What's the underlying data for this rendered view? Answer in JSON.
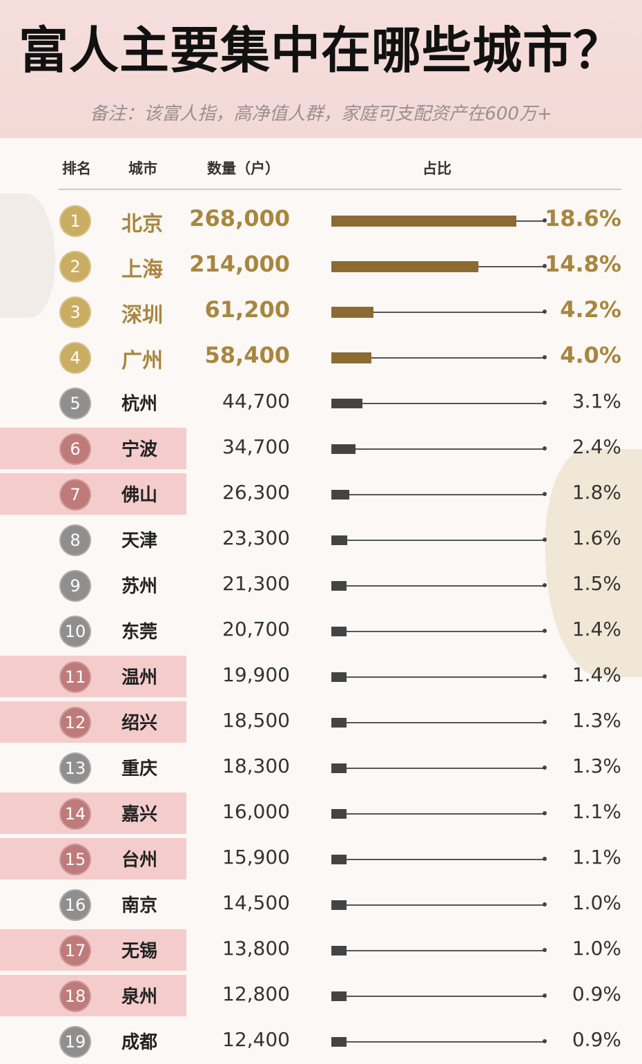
{
  "header": {
    "title": "富人主要集中在哪些城市？",
    "note": "备注：该富人指，高净值人群，家庭可支配资产在600万+"
  },
  "columns": {
    "rank": "排名",
    "city": "城市",
    "count": "数量（户）",
    "share": "占比"
  },
  "colors": {
    "gold_badge": "#c9ad62",
    "gold_text": "#a8863e",
    "gold_bar": "#8c6b33",
    "gray_badge": "#8f8f8f",
    "red_badge": "#bf7a7a",
    "dark_bar": "#444444",
    "highlight": "#f3c9c9"
  },
  "chart_data": {
    "type": "bar",
    "title": "富人主要集中在哪些城市？",
    "ylabel": "占比",
    "rows": [
      {
        "rank": "1",
        "city": "北京",
        "count": "268,000",
        "pct_label": "18.6%",
        "pct": 18.6,
        "style": "gold",
        "highlight": false
      },
      {
        "rank": "2",
        "city": "上海",
        "count": "214,000",
        "pct_label": "14.8%",
        "pct": 14.8,
        "style": "gold",
        "highlight": false
      },
      {
        "rank": "3",
        "city": "深圳",
        "count": "61,200",
        "pct_label": "4.2%",
        "pct": 4.2,
        "style": "gold",
        "highlight": false
      },
      {
        "rank": "4",
        "city": "广州",
        "count": "58,400",
        "pct_label": "4.0%",
        "pct": 4.0,
        "style": "gold",
        "highlight": false
      },
      {
        "rank": "5",
        "city": "杭州",
        "count": "44,700",
        "pct_label": "3.1%",
        "pct": 3.1,
        "style": "gray",
        "highlight": false
      },
      {
        "rank": "6",
        "city": "宁波",
        "count": "34,700",
        "pct_label": "2.4%",
        "pct": 2.4,
        "style": "red",
        "highlight": true
      },
      {
        "rank": "7",
        "city": "佛山",
        "count": "26,300",
        "pct_label": "1.8%",
        "pct": 1.8,
        "style": "red",
        "highlight": true
      },
      {
        "rank": "8",
        "city": "天津",
        "count": "23,300",
        "pct_label": "1.6%",
        "pct": 1.6,
        "style": "gray",
        "highlight": false
      },
      {
        "rank": "9",
        "city": "苏州",
        "count": "21,300",
        "pct_label": "1.5%",
        "pct": 1.5,
        "style": "gray",
        "highlight": false
      },
      {
        "rank": "10",
        "city": "东莞",
        "count": "20,700",
        "pct_label": "1.4%",
        "pct": 1.4,
        "style": "gray",
        "highlight": false
      },
      {
        "rank": "11",
        "city": "温州",
        "count": "19,900",
        "pct_label": "1.4%",
        "pct": 1.4,
        "style": "red",
        "highlight": true
      },
      {
        "rank": "12",
        "city": "绍兴",
        "count": "18,500",
        "pct_label": "1.3%",
        "pct": 1.3,
        "style": "red",
        "highlight": true
      },
      {
        "rank": "13",
        "city": "重庆",
        "count": "18,300",
        "pct_label": "1.3%",
        "pct": 1.3,
        "style": "gray",
        "highlight": false
      },
      {
        "rank": "14",
        "city": "嘉兴",
        "count": "16,000",
        "pct_label": "1.1%",
        "pct": 1.1,
        "style": "red",
        "highlight": true
      },
      {
        "rank": "15",
        "city": "台州",
        "count": "15,900",
        "pct_label": "1.1%",
        "pct": 1.1,
        "style": "red",
        "highlight": true
      },
      {
        "rank": "16",
        "city": "南京",
        "count": "14,500",
        "pct_label": "1.0%",
        "pct": 1.0,
        "style": "gray",
        "highlight": false
      },
      {
        "rank": "17",
        "city": "无锡",
        "count": "13,800",
        "pct_label": "1.0%",
        "pct": 1.0,
        "style": "red",
        "highlight": true
      },
      {
        "rank": "18",
        "city": "泉州",
        "count": "12,800",
        "pct_label": "0.9%",
        "pct": 0.9,
        "style": "red",
        "highlight": true
      },
      {
        "rank": "19",
        "city": "成都",
        "count": "12,400",
        "pct_label": "0.9%",
        "pct": 0.9,
        "style": "gray",
        "highlight": false
      }
    ]
  }
}
